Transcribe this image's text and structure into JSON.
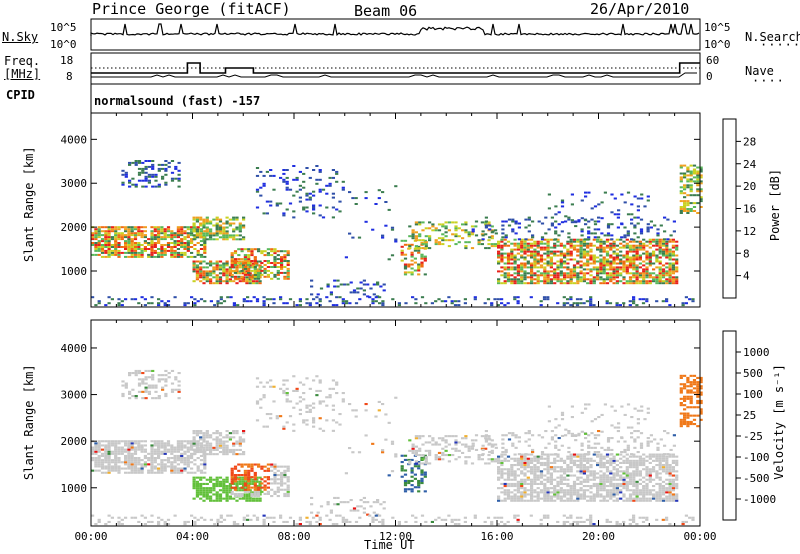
{
  "header": {
    "station": "Prince George (fitACF)",
    "beam": "Beam 06",
    "date": "26/Apr/2010"
  },
  "strip_panels": {
    "nsky_label": "N.Sky",
    "nsky_ticks": [
      "10^5",
      "10^0"
    ],
    "nsearch_label": "N.Search",
    "nsearch_ticks": [
      "10^5",
      "10^0"
    ],
    "freq_label_line1": "Freq.",
    "freq_label_line2": "[MHz]",
    "freq_ticks": [
      "18",
      "8"
    ],
    "nave_label": "Nave",
    "nave_ticks": [
      "60",
      "0"
    ],
    "cpid_label": "CPID",
    "cpid_text": "normalsound (fast) -157"
  },
  "chart_data": [
    {
      "type": "heatmap",
      "name": "power",
      "ylabel": "Slant Range [km]",
      "xlabel": "",
      "y_ticks": [
        1000,
        2000,
        3000,
        4000
      ],
      "ylim": [
        180,
        4600
      ],
      "xlim_hours": [
        0,
        24
      ],
      "colorbar_label": "Power [dB]",
      "colorbar_ticks": [
        "4",
        "8",
        "12",
        "16",
        "20",
        "24",
        "28"
      ],
      "colorbar_colors": [
        "#1f2ee0",
        "#2f4fa8",
        "#3b7d4f",
        "#58b85a",
        "#c8d222",
        "#f0a020",
        "#f06a10",
        "#e8201a"
      ]
    },
    {
      "type": "heatmap",
      "name": "velocity",
      "ylabel": "Slant Range [km]",
      "xlabel": "Time UT",
      "y_ticks": [
        1000,
        2000,
        3000,
        4000
      ],
      "ylim": [
        180,
        4600
      ],
      "xlim_hours": [
        0,
        24
      ],
      "x_ticks": [
        "00:00",
        "04:00",
        "08:00",
        "12:00",
        "16:00",
        "20:00",
        "00:00"
      ],
      "colorbar_label": "Velocity [m s⁻¹]",
      "colorbar_ticks": [
        "1000",
        "500",
        "100",
        "25",
        "-25",
        "-100",
        "-500",
        "-1000"
      ],
      "colorbar_colors": [
        "#2435b8",
        "#2f5fa8",
        "#3a8a3e",
        "#62c03a",
        "#c8c8c8",
        "#f0b030",
        "#f07818",
        "#f04818",
        "#e81414"
      ]
    }
  ]
}
